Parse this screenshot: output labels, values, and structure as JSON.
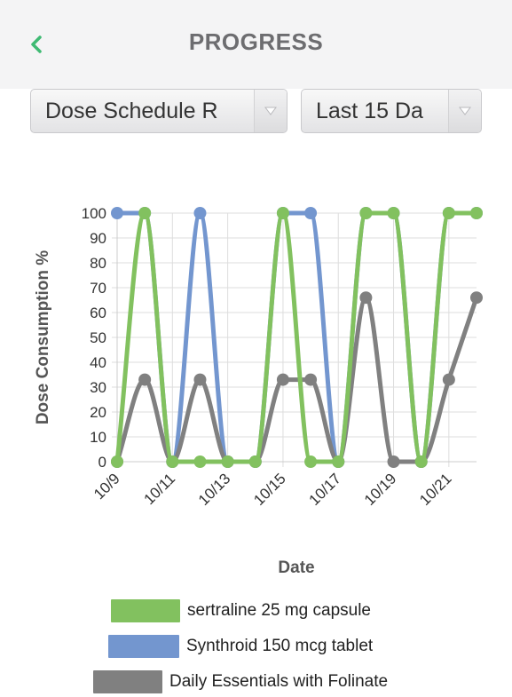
{
  "header": {
    "title": "PROGRESS",
    "back_icon": "chevron-left-icon"
  },
  "filters": {
    "schedule_select": "Dose Schedule R",
    "range_select": "Last 15 Da"
  },
  "colors": {
    "accent": "#3fba73",
    "sertraline": "#82c15f",
    "synthroid": "#7396cf",
    "daily": "#808080"
  },
  "chart_data": {
    "type": "line",
    "title": "",
    "xlabel": "Date",
    "ylabel": "Dose Consumption %",
    "ylim": [
      0,
      100
    ],
    "yticks": [
      0,
      10,
      20,
      30,
      40,
      50,
      60,
      70,
      80,
      90,
      100
    ],
    "x": [
      "10/9",
      "10/10",
      "10/11",
      "10/12",
      "10/13",
      "10/14",
      "10/15",
      "10/16",
      "10/17",
      "10/18",
      "10/19",
      "10/20",
      "10/21",
      "10/22"
    ],
    "xtick_labels": [
      "10/9",
      "10/11",
      "10/13",
      "10/15",
      "10/17",
      "10/19",
      "10/21"
    ],
    "grid": true,
    "legend_position": "bottom",
    "series": [
      {
        "name": "Synthroid 150 mcg tablet",
        "color": "#7396cf",
        "values": [
          100,
          100,
          0,
          100,
          0,
          0,
          100,
          100,
          0,
          100,
          100,
          0,
          100,
          100
        ]
      },
      {
        "name": "Daily Essentials with Folinate",
        "color": "#808080",
        "values": [
          0,
          33,
          0,
          33,
          0,
          0,
          33,
          33,
          0,
          66,
          0,
          0,
          33,
          66
        ]
      },
      {
        "name": "sertraline 25 mg capsule",
        "color": "#82c15f",
        "values": [
          0,
          100,
          0,
          0,
          0,
          0,
          100,
          0,
          0,
          100,
          100,
          0,
          100,
          100
        ]
      }
    ],
    "legend_order": [
      "sertraline 25 mg capsule",
      "Synthroid 150 mcg tablet",
      "Daily Essentials with Folinate"
    ]
  }
}
